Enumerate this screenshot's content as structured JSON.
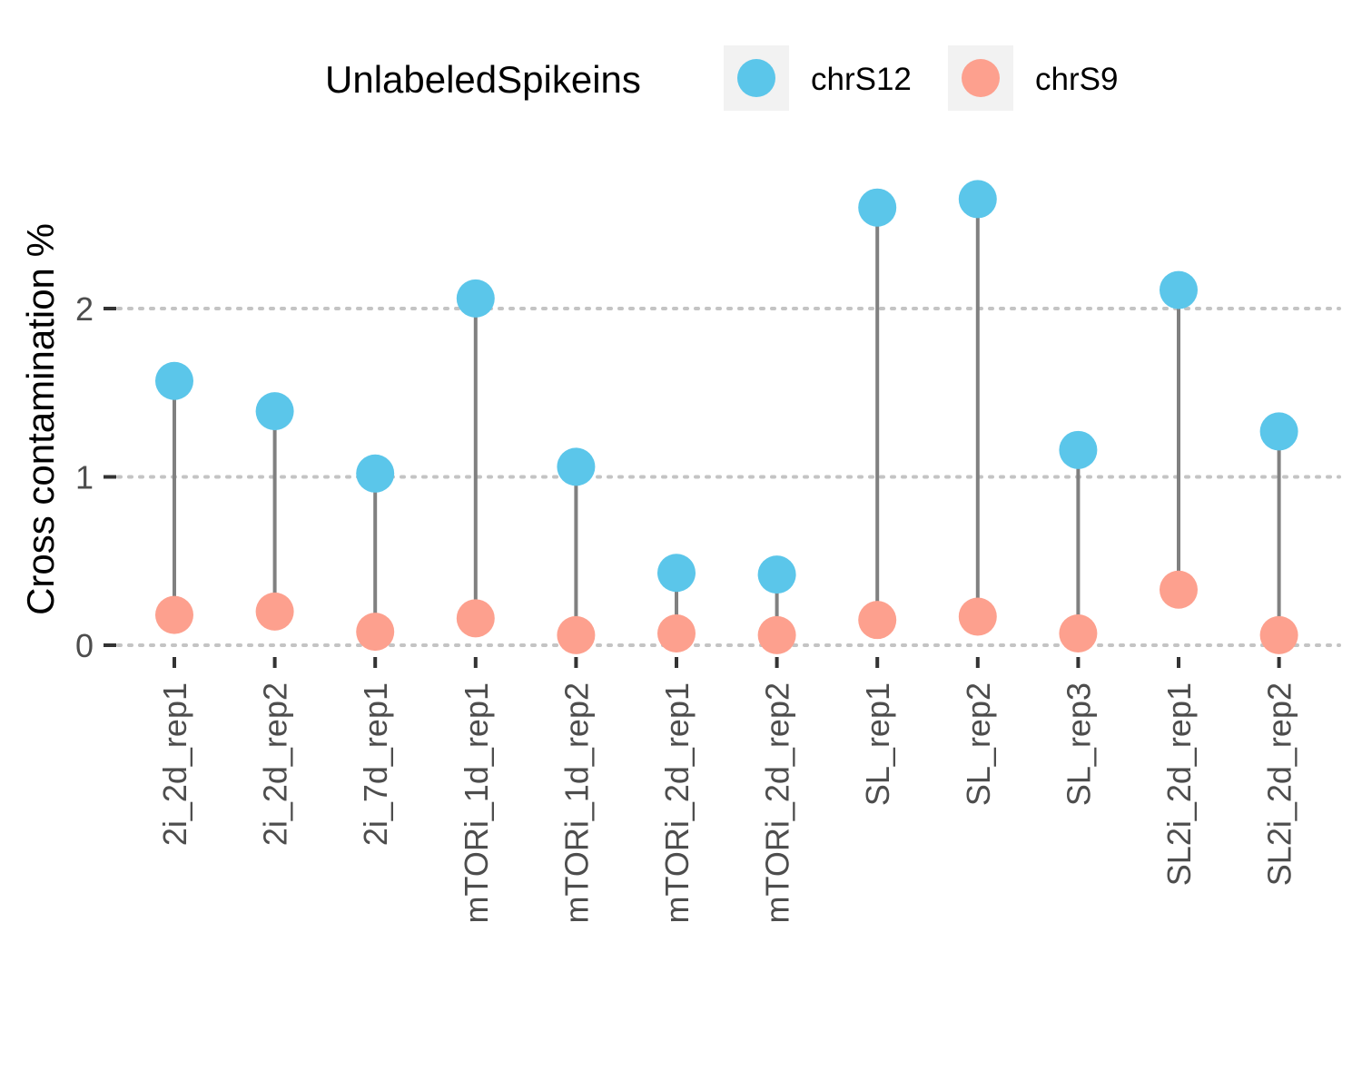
{
  "chart_data": {
    "type": "scatter",
    "style": "dumbbell",
    "ylabel": "Cross contamination %",
    "xlabel": "",
    "ylim": [
      0,
      2.8
    ],
    "yticks": [
      0,
      1,
      2
    ],
    "grid": "horizontal-dotted",
    "legend": {
      "title": "UnlabeledSpikeins",
      "position": "top",
      "entries": [
        "chrS12",
        "chrS9"
      ]
    },
    "categories": [
      "2i_2d_rep1",
      "2i_2d_rep2",
      "2i_7d_rep1",
      "mTORi_1d_rep1",
      "mTORi_1d_rep2",
      "mTORi_2d_rep1",
      "mTORi_2d_rep2",
      "SL_rep1",
      "SL_rep2",
      "SL_rep3",
      "SL2i_2d_rep1",
      "SL2i_2d_rep2"
    ],
    "series": [
      {
        "name": "chrS12",
        "color": "#5bc6ea",
        "values": [
          1.57,
          1.39,
          1.02,
          2.06,
          1.06,
          0.43,
          0.42,
          2.6,
          2.65,
          1.16,
          2.11,
          1.27
        ]
      },
      {
        "name": "chrS9",
        "color": "#fda08e",
        "values": [
          0.18,
          0.2,
          0.08,
          0.16,
          0.06,
          0.07,
          0.06,
          0.15,
          0.17,
          0.07,
          0.33,
          0.06
        ]
      }
    ],
    "connector_color": "#808080"
  }
}
